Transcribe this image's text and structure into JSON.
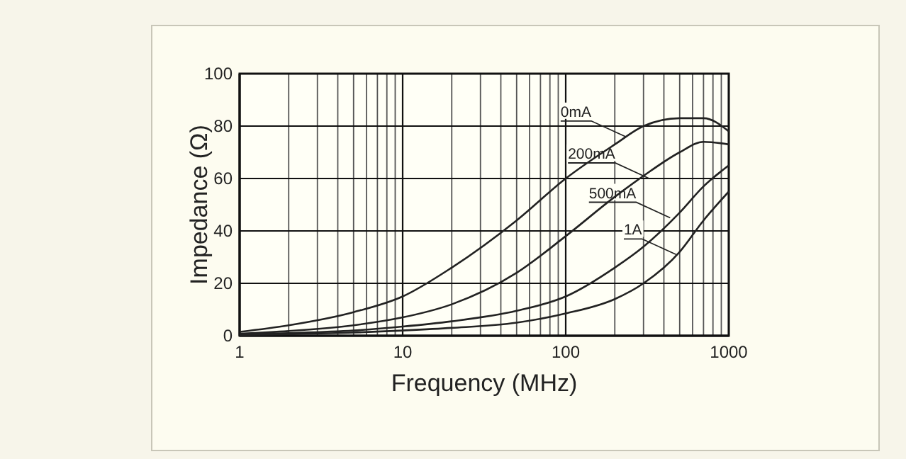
{
  "chart_data": {
    "type": "line",
    "xlabel": "Frequency (MHz)",
    "ylabel": "Impedance (Ω)",
    "log": "x",
    "grid": true,
    "marker": "none",
    "line_style": "solid",
    "x": [
      1,
      2,
      5,
      10,
      20,
      50,
      100,
      200,
      300,
      500,
      700,
      1000
    ],
    "xlim": [
      1,
      1000
    ],
    "ylim": [
      0,
      100
    ],
    "xticks": [
      1,
      {
        "value": 2,
        "label": null
      },
      {
        "value": 3,
        "label": null
      },
      {
        "value": 4,
        "label": null
      },
      {
        "value": 5,
        "label": null
      },
      {
        "value": 6,
        "label": null
      },
      {
        "value": 7,
        "label": null
      },
      {
        "value": 8,
        "label": null
      },
      {
        "value": 9,
        "label": null
      },
      10,
      {
        "value": 20,
        "label": null
      },
      {
        "value": 30,
        "label": null
      },
      {
        "value": 40,
        "label": null
      },
      {
        "value": 50,
        "label": null
      },
      {
        "value": 60,
        "label": null
      },
      {
        "value": 70,
        "label": null
      },
      {
        "value": 80,
        "label": null
      },
      {
        "value": 90,
        "label": null
      },
      100,
      {
        "value": 200,
        "label": null
      },
      {
        "value": 300,
        "label": null
      },
      {
        "value": 400,
        "label": null
      },
      {
        "value": 500,
        "label": null
      },
      {
        "value": 600,
        "label": null
      },
      {
        "value": 700,
        "label": null
      },
      {
        "value": 800,
        "label": null
      },
      {
        "value": 900,
        "label": null
      },
      1000
    ],
    "yticks": [
      0,
      20,
      40,
      60,
      80,
      100
    ],
    "series": [
      {
        "color": "#222222",
        "values": [
          1.5,
          4,
          9,
          15,
          26,
          44,
          60,
          73,
          80,
          83,
          83,
          78
        ]
      },
      {
        "color": "#222222",
        "values": [
          0.8,
          1.8,
          4,
          7,
          12,
          24,
          38,
          53,
          61,
          70,
          74,
          73
        ]
      },
      {
        "color": "#222222",
        "values": [
          0.5,
          1,
          2,
          3.5,
          5.5,
          9.5,
          15,
          26,
          34,
          47,
          57,
          65
        ]
      },
      {
        "color": "#222222",
        "values": [
          0.3,
          0.6,
          1.2,
          2,
          3,
          5,
          8.5,
          14,
          20,
          32,
          44,
          55
        ]
      }
    ],
    "annotations": [
      {
        "text": "0mA",
        "x": 232,
        "y": 76
      },
      {
        "text": "200mA",
        "x": 325,
        "y": 60
      },
      {
        "text": "500mA",
        "x": 437,
        "y": 45
      },
      {
        "text": "1A",
        "x": 475,
        "y": 31
      }
    ]
  }
}
